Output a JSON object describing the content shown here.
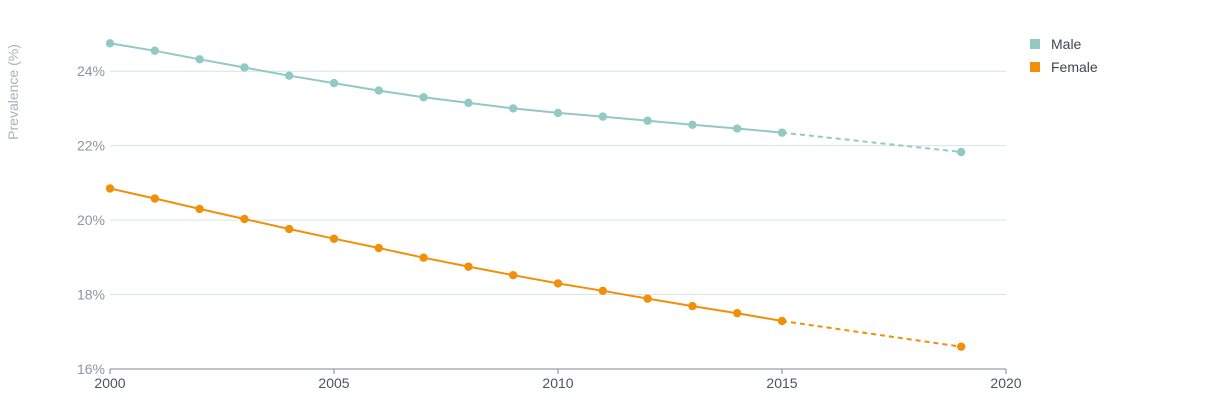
{
  "chart_data": {
    "type": "line",
    "ylabel": "Prevalence (%)",
    "xlim": [
      2000,
      2020
    ],
    "ylim": [
      16,
      25
    ],
    "x_ticks": [
      "2000",
      "2005",
      "2010",
      "2015",
      "2020"
    ],
    "y_ticks": [
      "16%",
      "18%",
      "20%",
      "22%",
      "24%"
    ],
    "grid": true,
    "legend": "top-right",
    "series": [
      {
        "name": "Male",
        "color": "#93c9c5",
        "x": [
          2000,
          2001,
          2002,
          2003,
          2004,
          2005,
          2006,
          2007,
          2008,
          2009,
          2010,
          2011,
          2012,
          2013,
          2014,
          2015,
          2019
        ],
        "values": [
          24.75,
          24.55,
          24.32,
          24.1,
          23.88,
          23.68,
          23.48,
          23.3,
          23.15,
          23.0,
          22.88,
          22.78,
          22.67,
          22.56,
          22.46,
          22.35,
          21.83
        ],
        "projected_from": 2015
      },
      {
        "name": "Female",
        "color": "#f0900a",
        "x": [
          2000,
          2001,
          2002,
          2003,
          2004,
          2005,
          2006,
          2007,
          2008,
          2009,
          2010,
          2011,
          2012,
          2013,
          2014,
          2015,
          2019
        ],
        "values": [
          20.85,
          20.58,
          20.3,
          20.03,
          19.76,
          19.5,
          19.25,
          18.99,
          18.75,
          18.52,
          18.3,
          18.1,
          17.89,
          17.69,
          17.5,
          17.29,
          16.6
        ],
        "projected_from": 2015
      }
    ]
  }
}
